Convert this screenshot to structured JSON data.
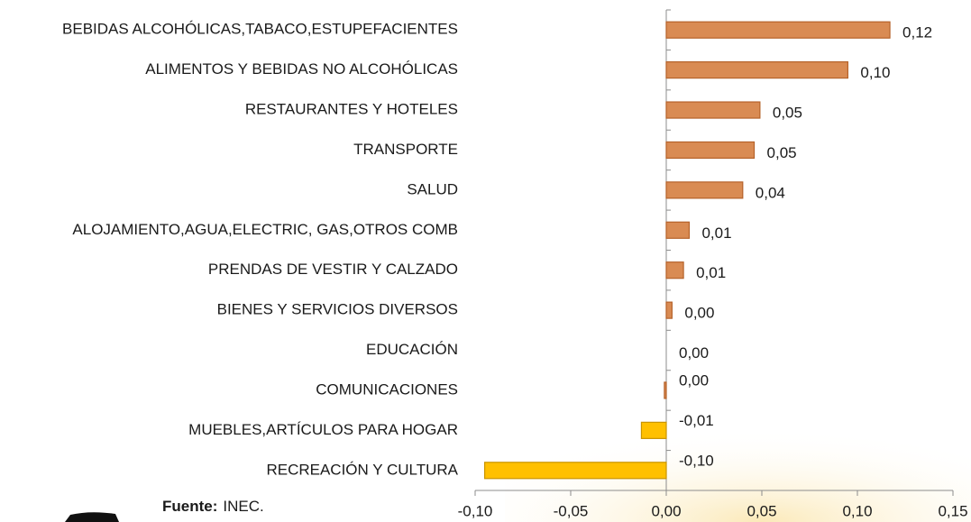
{
  "chart_data": {
    "type": "barh",
    "categories": [
      "BEBIDAS ALCOHÓLICAS,TABACO,ESTUPEFACIENTES",
      "ALIMENTOS Y BEBIDAS NO ALCOHÓLICAS",
      "RESTAURANTES Y HOTELES",
      "TRANSPORTE",
      "SALUD",
      "ALOJAMIENTO,AGUA,ELECTRIC, GAS,OTROS COMB",
      "PRENDAS DE VESTIR Y CALZADO",
      "BIENES Y SERVICIOS DIVERSOS",
      "EDUCACIÓN",
      "COMUNICACIONES",
      "MUEBLES,ARTÍCULOS PARA HOGAR",
      "RECREACIÓN Y CULTURA"
    ],
    "values": [
      0.117,
      0.095,
      0.049,
      0.046,
      0.04,
      0.012,
      0.009,
      0.003,
      0.0,
      -0.001,
      -0.013,
      -0.095
    ],
    "value_labels": [
      "0,12",
      "0,10",
      "0,05",
      "0,05",
      "0,04",
      "0,01",
      "0,01",
      "0,00",
      "0,00",
      "0,00",
      "-0,01",
      "-0,10"
    ],
    "colors": [
      "#d98b53",
      "#d98b53",
      "#d98b53",
      "#d98b53",
      "#d98b53",
      "#d98b53",
      "#d98b53",
      "#d98b53",
      "#d98b53",
      "#d98b53",
      "#ffc000",
      "#ffc000"
    ],
    "xlim": [
      -0.1,
      0.15
    ],
    "xticks": [
      {
        "value": -0.1,
        "label": "-0,10"
      },
      {
        "value": -0.05,
        "label": "-0,05"
      },
      {
        "value": 0,
        "label": "0,00"
      },
      {
        "value": 0.05,
        "label": "0,05"
      },
      {
        "value": 0.1,
        "label": "0,10"
      },
      {
        "value": 0.15,
        "label": "0,15"
      }
    ],
    "source_label": "Fuente:",
    "source": "INEC."
  }
}
